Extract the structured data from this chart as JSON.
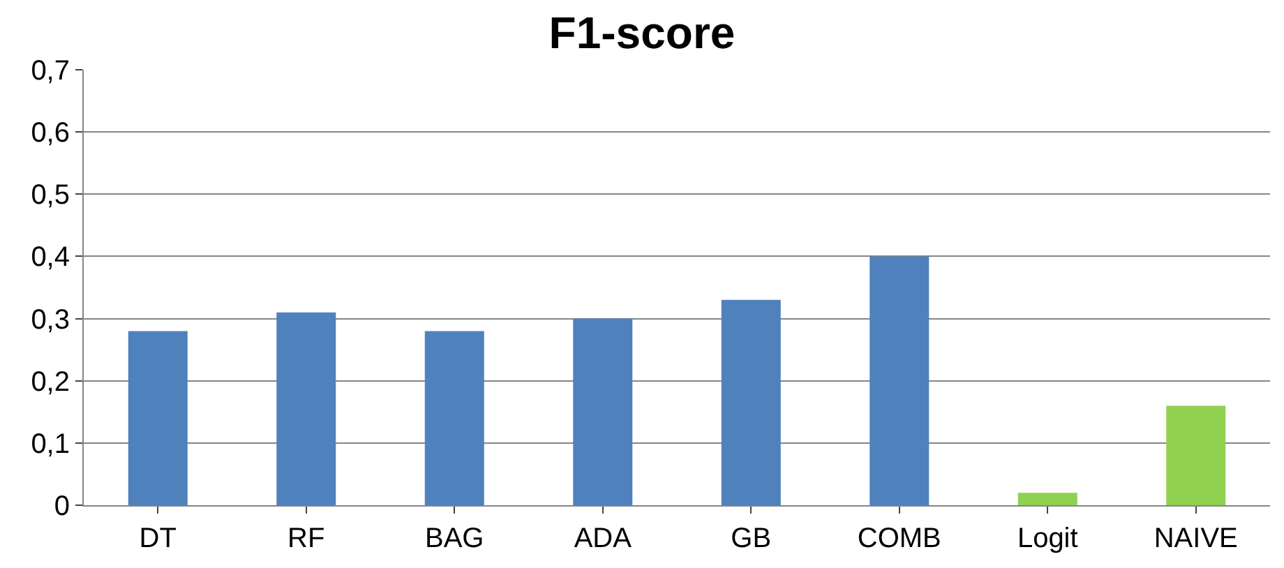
{
  "chart_data": {
    "type": "bar",
    "title": "F1-score",
    "categories": [
      "DT",
      "RF",
      "BAG",
      "ADA",
      "GB",
      "COMB",
      "Logit",
      "NAIVE"
    ],
    "values": [
      0.28,
      0.31,
      0.28,
      0.3,
      0.33,
      0.4,
      0.02,
      0.16
    ],
    "colors": [
      "#4f81bd",
      "#4f81bd",
      "#4f81bd",
      "#4f81bd",
      "#4f81bd",
      "#4f81bd",
      "#92d050",
      "#92d050"
    ],
    "ylim": [
      0,
      0.7
    ],
    "yticks": [
      {
        "value": 0,
        "label": "0"
      },
      {
        "value": 0.1,
        "label": "0,1"
      },
      {
        "value": 0.2,
        "label": "0,2"
      },
      {
        "value": 0.3,
        "label": "0,3"
      },
      {
        "value": 0.4,
        "label": "0,4"
      },
      {
        "value": 0.5,
        "label": "0,5"
      },
      {
        "value": 0.6,
        "label": "0,6"
      },
      {
        "value": 0.7,
        "label": "0,7"
      }
    ],
    "grid": "y"
  }
}
